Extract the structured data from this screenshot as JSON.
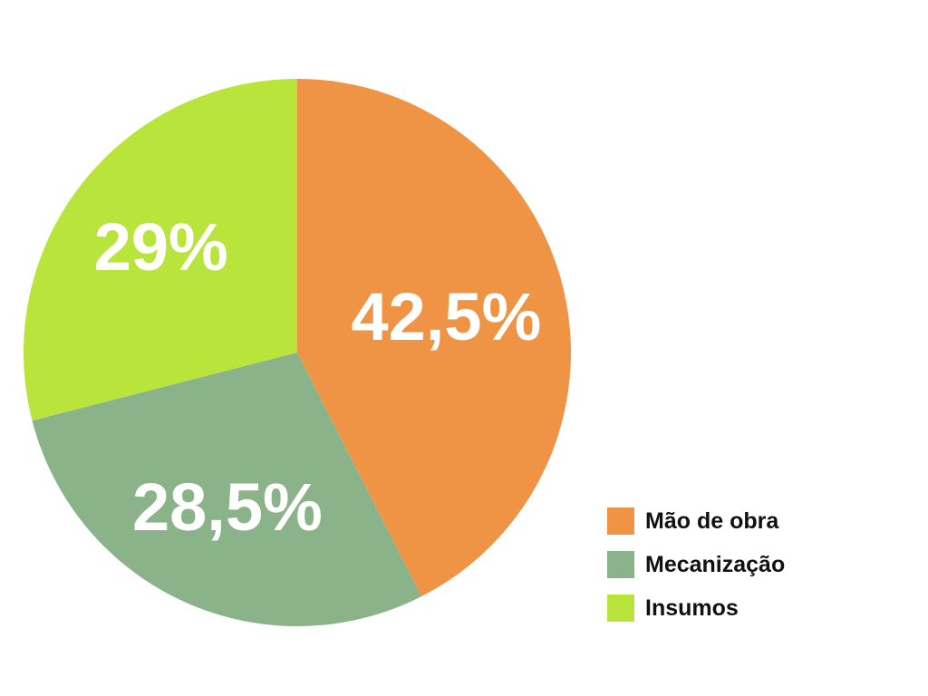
{
  "chart_data": {
    "type": "pie",
    "slices": [
      {
        "name": "Mão de obra",
        "value": 42.5,
        "label": "42,5%",
        "color": "#EE9444"
      },
      {
        "name": "Mecanização",
        "value": 28.5,
        "label": "28,5%",
        "color": "#8AB38A"
      },
      {
        "name": "Insumos",
        "value": 29,
        "label": "29%",
        "color": "#B8E43C"
      }
    ],
    "start_angle": "12 o'clock",
    "direction": "clockwise",
    "legend_position": "bottom-right"
  }
}
